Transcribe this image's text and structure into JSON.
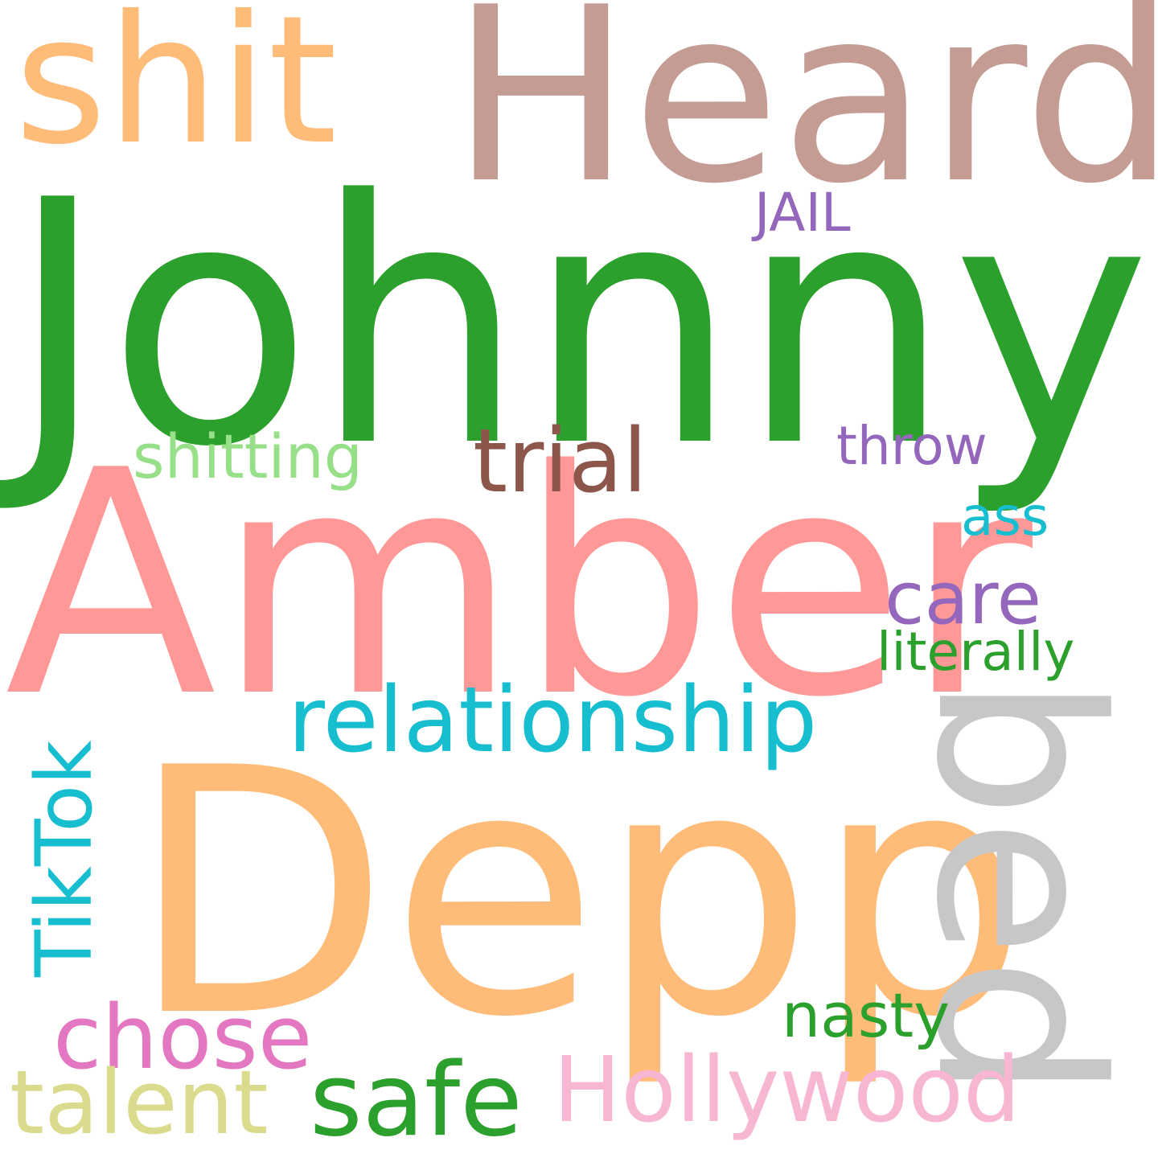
{
  "word_cloud": {
    "background": "#ffffff",
    "words": {
      "johnny": {
        "text": "Johnny",
        "color": "#2ca02c"
      },
      "amber": {
        "text": "Amber",
        "color": "#ff9896"
      },
      "depp": {
        "text": "Depp",
        "color": "#ffbb78"
      },
      "heard": {
        "text": "Heard",
        "color": "#c49c94"
      },
      "shit": {
        "text": "shit",
        "color": "#ffbb78"
      },
      "bed": {
        "text": "bed",
        "color": "#c7c7c7"
      },
      "relationship": {
        "text": "relationship",
        "color": "#17becf"
      },
      "trial": {
        "text": "trial",
        "color": "#8c564b"
      },
      "care": {
        "text": "care",
        "color": "#9467bd"
      },
      "literally": {
        "text": "literally",
        "color": "#2ca02c"
      },
      "ass": {
        "text": "ass",
        "color": "#17becf"
      },
      "throw": {
        "text": "throw",
        "color": "#9467bd"
      },
      "shitting": {
        "text": "shitting",
        "color": "#98df8a"
      },
      "jail": {
        "text": "JAIL",
        "color": "#9467bd"
      },
      "tiktok": {
        "text": "TikTok",
        "color": "#17becf"
      },
      "chose": {
        "text": "chose",
        "color": "#e377c2"
      },
      "talent": {
        "text": "talent",
        "color": "#dbdb8d"
      },
      "safe": {
        "text": "safe",
        "color": "#2ca02c"
      },
      "hollywood": {
        "text": "Hollywood",
        "color": "#f7b6d2"
      },
      "nasty": {
        "text": "nasty",
        "color": "#2ca02c"
      }
    }
  }
}
